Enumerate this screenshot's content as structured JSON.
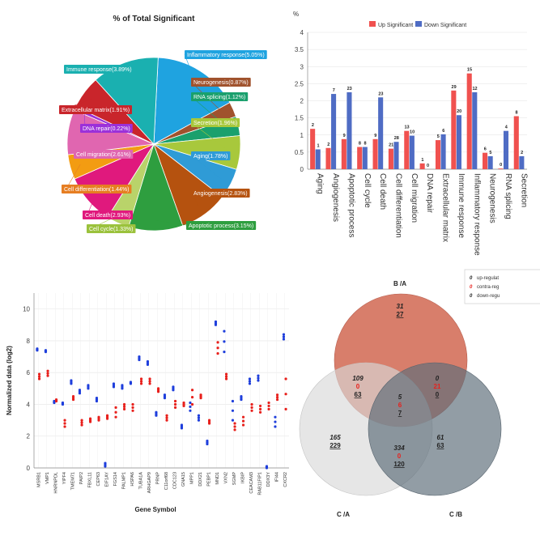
{
  "chart_data": [
    {
      "type": "pie",
      "title": "% of Total Significant",
      "slices": [
        {
          "label": "Inflammatory response(5.05%)",
          "value": 5.05,
          "color": "#1fa3e0",
          "label_color": "#1fa3e0"
        },
        {
          "label": "Neurogenesis(0.87%)",
          "value": 0.87,
          "color": "#a0522d",
          "label_color": "#a0522d"
        },
        {
          "label": "RNA splicing(1.12%)",
          "value": 1.12,
          "color": "#1aa06d",
          "label_color": "#1aa06d"
        },
        {
          "label": "Secretion(1.96%)",
          "value": 1.96,
          "color": "#a8c83c",
          "label_color": "#a8c83c"
        },
        {
          "label": "Aging(1.78%)",
          "value": 1.78,
          "color": "#2f9bd6",
          "label_color": "#2f9bd6"
        },
        {
          "label": "Angiogenesis(2.83%)",
          "value": 2.83,
          "color": "#b5520f",
          "label_color": "#b5520f"
        },
        {
          "label": "Apoptotic process(3.15%)",
          "value": 3.15,
          "color": "#2e9e3f",
          "label_color": "#2e9e3f"
        },
        {
          "label": "Cell cycle(1.33%)",
          "value": 1.33,
          "color": "#b9d36a",
          "label_color": "#9bc23c"
        },
        {
          "label": "Cell death(2.93%)",
          "value": 2.93,
          "color": "#e0197d",
          "label_color": "#e0197d"
        },
        {
          "label": "Cell differentiation(1.44%)",
          "value": 1.44,
          "color": "#f39c12",
          "label_color": "#e67e22"
        },
        {
          "label": "Cell migration(2.61%)",
          "value": 2.61,
          "color": "#e066b0",
          "label_color": "#e066b0"
        },
        {
          "label": "DNA repair(0.22%)",
          "value": 0.22,
          "color": "#9b30d9",
          "label_color": "#9b30d9"
        },
        {
          "label": "Extracellular matrix(1.91%)",
          "value": 1.91,
          "color": "#c9252b",
          "label_color": "#c9252b"
        },
        {
          "label": "Immune response(3.89%)",
          "value": 3.89,
          "color": "#1ab0b0",
          "label_color": "#1ab0b0"
        }
      ]
    },
    {
      "type": "bar",
      "ylabel": "%",
      "ylim": [
        0,
        4
      ],
      "yticks": [
        "0",
        "0.5",
        "1",
        "1.5",
        "2",
        "2.5",
        "3",
        "3.5",
        "4"
      ],
      "legend_position": "top",
      "categories": [
        "Aging",
        "Angiogenesis",
        "Apoptotic process",
        "Cell cycle",
        "Cell death",
        "Cell differentiation",
        "Cell migration",
        "DNA repair",
        "Extracellular matrix",
        "Immune response",
        "Inflammatory response",
        "Neurogenesis",
        "RNA splicing",
        "Secretion"
      ],
      "series": [
        {
          "name": "Up Significant",
          "color": "#f0514f",
          "values": [
            1.18,
            0.62,
            0.88,
            0.65,
            0.88,
            0.6,
            1.12,
            0.17,
            0.85,
            2.3,
            2.8,
            0.48,
            0.02,
            1.55
          ],
          "labels": [
            "2",
            "2",
            "9",
            "8",
            "9",
            "21",
            "13",
            "1",
            "5",
            "29",
            "15",
            "6",
            "0",
            "8"
          ]
        },
        {
          "name": "Down Significant",
          "color": "#4f6cc4",
          "values": [
            0.58,
            2.2,
            2.25,
            0.65,
            2.1,
            0.8,
            0.98,
            0.0,
            1.02,
            1.58,
            2.25,
            0.38,
            1.12,
            0.38
          ],
          "labels": [
            "1",
            "7",
            "23",
            "8",
            "23",
            "28",
            "10",
            "0",
            "6",
            "20",
            "12",
            "5",
            "4",
            "2"
          ]
        }
      ]
    },
    {
      "type": "scatter",
      "ylabel": "Normalized data (log2)",
      "xlabel": "Gene Symbol",
      "ylim": [
        0,
        11
      ],
      "yticks": [
        "0",
        "2",
        "4",
        "6",
        "8",
        "10"
      ],
      "genes": [
        "MSRB1",
        "VMP1",
        "HNRNPDL",
        "YIPF4",
        "TMEM71",
        "PAIP2",
        "FBXL11",
        "CEP63",
        "EIF1AY",
        "FGS14",
        "PALMP1",
        "HSPA6",
        "TUBA1A",
        "ARHGAP9",
        "PRNP",
        "C11orf68",
        "CDC123",
        "GNA15",
        "MPP1",
        "DDX21",
        "PEBP1",
        "MND1",
        "VXN2",
        "SGMP",
        "IKBIP",
        "CEACAM3",
        "RAB11FIP1",
        "DDX3Y",
        "IFI44",
        "CXCR2"
      ],
      "series": [
        {
          "name": "blue",
          "color": "#1f3fdc",
          "values": [
            [
              7.4,
              7.5
            ],
            [
              7.3,
              7.4
            ],
            [
              4.1,
              4.2
            ],
            [
              4.0,
              4.1
            ],
            [
              5.3,
              5.5
            ],
            [
              4.7,
              4.9
            ],
            [
              5.0,
              5.2
            ],
            [
              4.2,
              4.4
            ],
            [
              0.1,
              0.3
            ],
            [
              5.1,
              5.3
            ],
            [
              5.0,
              5.2
            ],
            [
              5.3,
              5.4
            ],
            [
              6.8,
              7.0
            ],
            [
              6.5,
              6.7
            ],
            [
              3.3,
              3.5
            ],
            [
              4.4,
              4.6
            ],
            [
              4.9,
              5.1
            ],
            [
              2.5,
              2.7
            ],
            [
              3.6,
              4.1
            ],
            [
              3.0,
              3.3
            ],
            [
              1.5,
              1.7
            ],
            [
              9.0,
              9.2
            ],
            [
              7.3,
              8.6
            ],
            [
              3.0,
              4.2
            ],
            [
              4.3,
              4.5
            ],
            [
              5.3,
              5.6
            ],
            [
              5.5,
              5.8
            ],
            [
              0.0,
              0.1
            ],
            [
              2.6,
              3.2
            ],
            [
              8.1,
              8.4
            ]
          ]
        },
        {
          "name": "red",
          "color": "#e8201c",
          "values": [
            [
              5.6,
              5.9
            ],
            [
              5.8,
              6.1
            ],
            [
              4.2,
              4.3
            ],
            [
              2.6,
              3.0
            ],
            [
              4.3,
              4.5
            ],
            [
              2.7,
              3.0
            ],
            [
              2.9,
              3.1
            ],
            [
              3.0,
              3.2
            ],
            [
              3.1,
              3.3
            ],
            [
              3.2,
              3.8
            ],
            [
              3.7,
              4.0
            ],
            [
              3.6,
              4.0
            ],
            [
              5.3,
              5.6
            ],
            [
              5.3,
              5.6
            ],
            [
              4.8,
              5.0
            ],
            [
              3.0,
              3.3
            ],
            [
              3.8,
              4.2
            ],
            [
              3.9,
              4.1
            ],
            [
              4.0,
              4.9
            ],
            [
              4.4,
              4.6
            ],
            [
              2.8,
              3.0
            ],
            [
              7.2,
              7.9
            ],
            [
              5.6,
              5.9
            ],
            [
              2.4,
              2.8
            ],
            [
              2.7,
              3.2
            ],
            [
              3.6,
              4.0
            ],
            [
              3.5,
              3.9
            ],
            [
              3.7,
              4.1
            ],
            [
              4.3,
              4.6
            ],
            [
              3.7,
              5.6
            ]
          ]
        }
      ]
    },
    {
      "type": "venn",
      "legend": [
        "up-regulat",
        "contra-reg",
        "down-regu"
      ],
      "set_labels": [
        "B /A",
        "C /A",
        "C /B"
      ],
      "colors": [
        "#d4705b",
        "#d9d9d9",
        "#5e6e7a"
      ],
      "regions": [
        {
          "name": "B only",
          "up": "31",
          "contra": "",
          "down": "27"
        },
        {
          "name": "A and C",
          "up": "109",
          "contra": "0",
          "down": "63"
        },
        {
          "name": "A and B",
          "up": "0",
          "contra": "21",
          "down": "0"
        },
        {
          "name": "center",
          "up": "5",
          "contra": "6",
          "down": "7"
        },
        {
          "name": "C/A only",
          "up": "165",
          "contra": "",
          "down": "229"
        },
        {
          "name": "C/B only",
          "up": "61",
          "contra": "",
          "down": "63"
        },
        {
          "name": "B and C",
          "up": "334",
          "contra": "0",
          "down": "120"
        }
      ]
    }
  ]
}
